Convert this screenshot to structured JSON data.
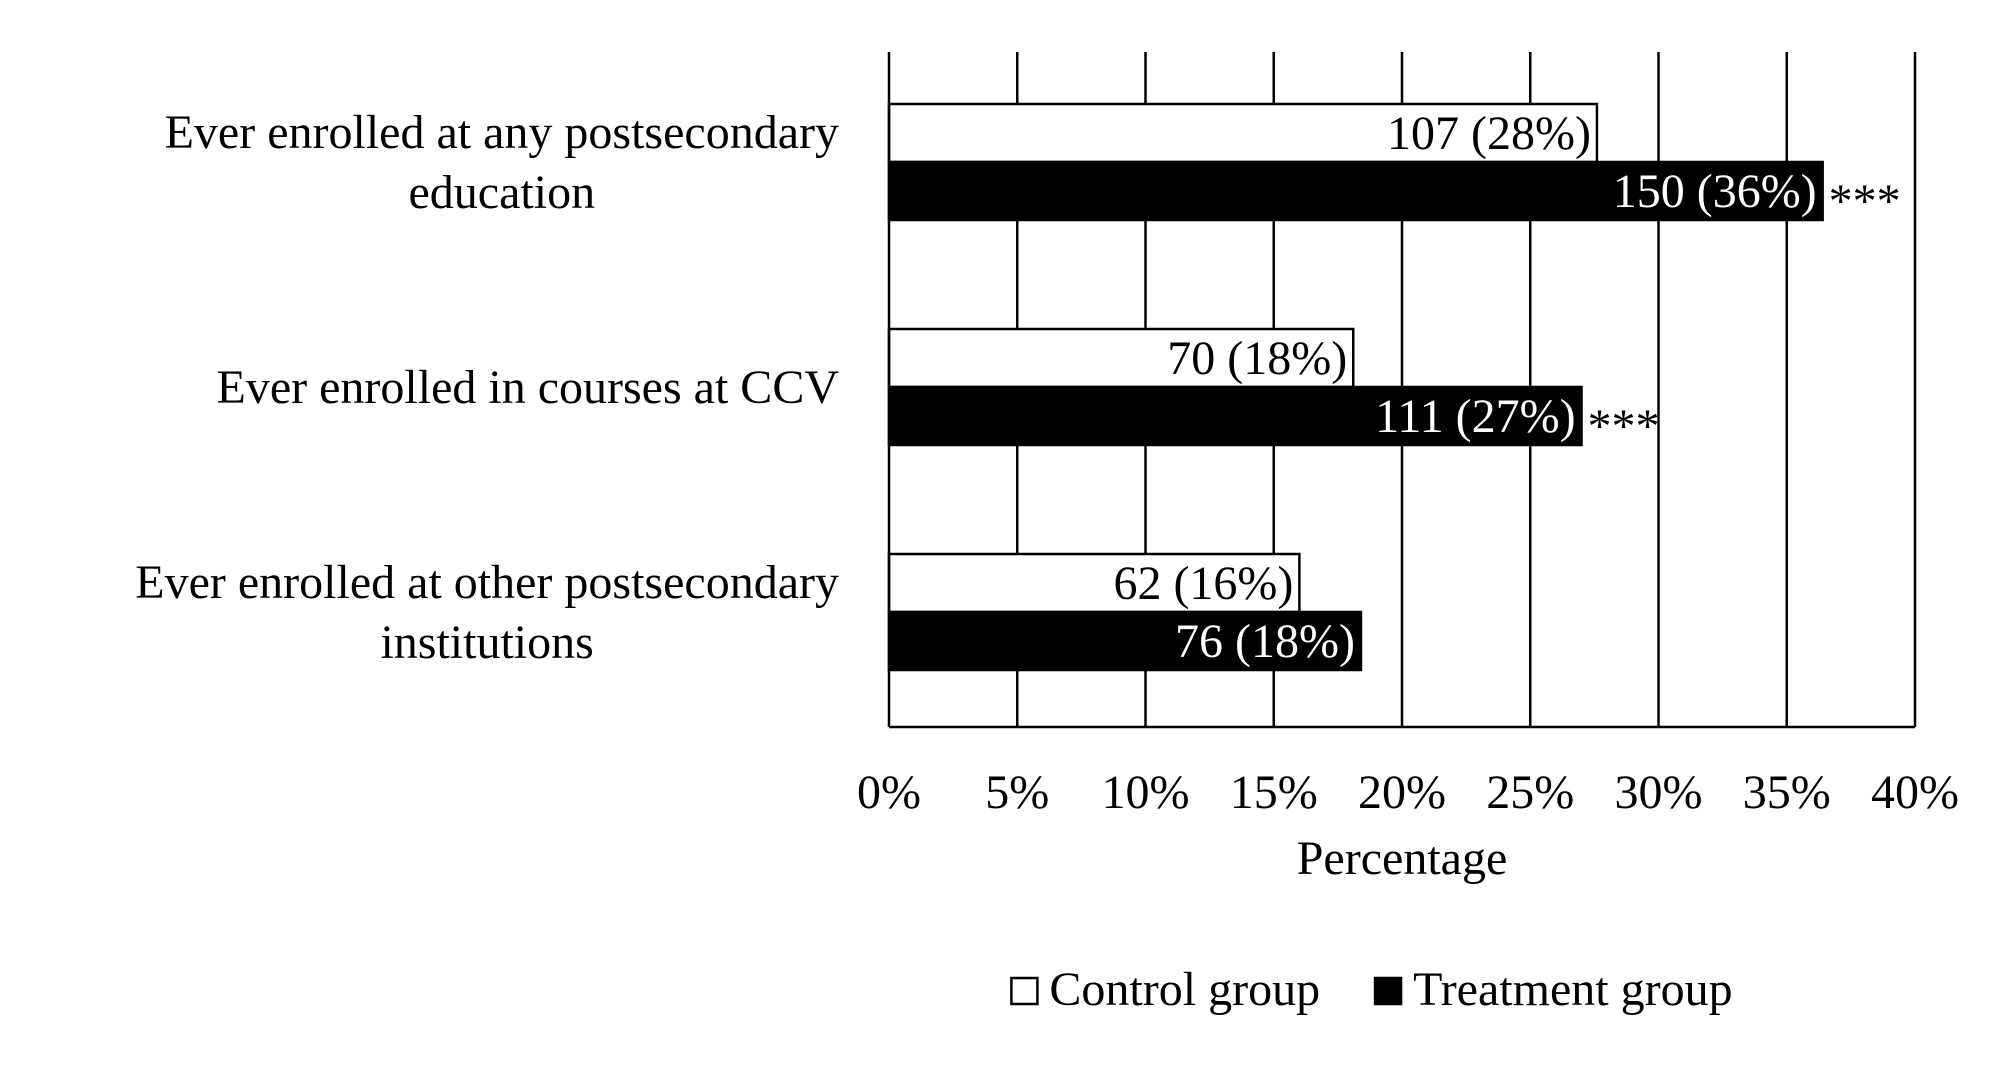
{
  "chart_data": {
    "type": "bar",
    "orientation": "horizontal",
    "categories": [
      [
        "Ever enrolled at any postsecondary",
        "education"
      ],
      [
        "Ever enrolled in courses at CCV"
      ],
      [
        "Ever enrolled at other postsecondary",
        "institutions"
      ]
    ],
    "series": [
      {
        "name": "Control group",
        "fill": "#ffffff",
        "label_color": "#000000",
        "values": [
          27.6,
          18.1,
          16.0
        ],
        "labels": [
          "107 (28%)",
          "70 (18%)",
          "62 (16%)"
        ],
        "significance": [
          "",
          "",
          ""
        ]
      },
      {
        "name": "Treatment group",
        "fill": "#000000",
        "label_color": "#ffffff",
        "values": [
          36.4,
          27.0,
          18.4
        ],
        "labels": [
          "150 (36%)",
          "111 (27%)",
          "76 (18%)"
        ],
        "significance": [
          "***",
          "***",
          ""
        ]
      }
    ],
    "xlabel": "Percentage",
    "ylabel": "",
    "xlim": [
      0,
      40
    ],
    "xticks": [
      0,
      5,
      10,
      15,
      20,
      25,
      30,
      35,
      40
    ],
    "xtick_labels": [
      "0%",
      "5%",
      "10%",
      "15%",
      "20%",
      "25%",
      "30%",
      "35%",
      "40%"
    ],
    "grid": true,
    "legend_position": "bottom"
  }
}
